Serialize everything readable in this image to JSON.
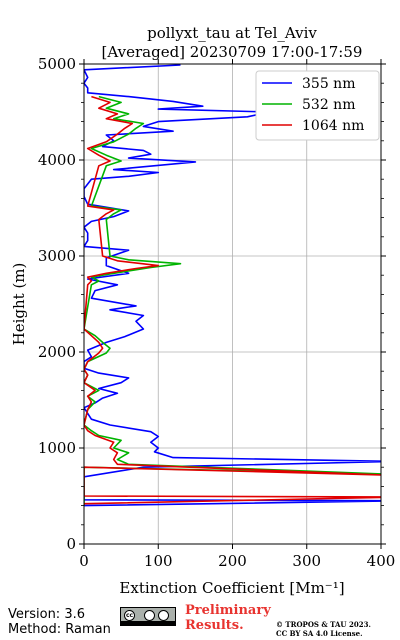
{
  "chart_data": {
    "type": "line",
    "title": "pollyxt_tau at Tel_Aviv",
    "subtitle": "[Averaged] 20230709 17:00-17:59",
    "xlabel": "Extinction Coefficient [Mm⁻¹]",
    "ylabel": "Height (m)",
    "xlim": [
      0,
      400
    ],
    "ylim": [
      0,
      5000
    ],
    "xticks": [
      "0",
      "100",
      "200",
      "300",
      "400"
    ],
    "yticks": [
      "0",
      "1000",
      "2000",
      "3000",
      "4000",
      "5000"
    ],
    "grid": true,
    "legend_position": "top-right",
    "series": [
      {
        "name": "355 nm",
        "color": "#0000ff",
        "points": [
          [
            0,
            400
          ],
          [
            430,
            450
          ],
          [
            0,
            460
          ],
          [
            0,
            700
          ],
          [
            80,
            800
          ],
          [
            420,
            860
          ],
          [
            120,
            900
          ],
          [
            95,
            960
          ],
          [
            100,
            1000
          ],
          [
            90,
            1060
          ],
          [
            100,
            1120
          ],
          [
            90,
            1170
          ],
          [
            35,
            1240
          ],
          [
            10,
            1300
          ],
          [
            5,
            1360
          ],
          [
            0,
            1420
          ],
          [
            15,
            1470
          ],
          [
            25,
            1520
          ],
          [
            45,
            1570
          ],
          [
            20,
            1620
          ],
          [
            50,
            1680
          ],
          [
            60,
            1730
          ],
          [
            20,
            1780
          ],
          [
            0,
            1830
          ],
          [
            0,
            1900
          ],
          [
            10,
            1950
          ],
          [
            5,
            2020
          ],
          [
            30,
            2100
          ],
          [
            55,
            2160
          ],
          [
            80,
            2240
          ],
          [
            70,
            2320
          ],
          [
            80,
            2380
          ],
          [
            35,
            2440
          ],
          [
            70,
            2480
          ],
          [
            10,
            2560
          ],
          [
            15,
            2640
          ],
          [
            45,
            2700
          ],
          [
            5,
            2760
          ],
          [
            60,
            2820
          ],
          [
            30,
            2900
          ],
          [
            30,
            2980
          ],
          [
            60,
            3060
          ],
          [
            0,
            3100
          ],
          [
            5,
            3160
          ],
          [
            5,
            3240
          ],
          [
            0,
            3300
          ],
          [
            10,
            3360
          ],
          [
            40,
            3410
          ],
          [
            60,
            3470
          ],
          [
            5,
            3540
          ],
          [
            0,
            3620
          ],
          [
            0,
            3700
          ],
          [
            5,
            3750
          ],
          [
            10,
            3800
          ],
          [
            60,
            3830
          ],
          [
            100,
            3870
          ],
          [
            40,
            3900
          ],
          [
            150,
            3980
          ],
          [
            60,
            4020
          ],
          [
            90,
            4060
          ],
          [
            80,
            4100
          ],
          [
            25,
            4140
          ],
          [
            40,
            4200
          ],
          [
            30,
            4260
          ],
          [
            120,
            4300
          ],
          [
            80,
            4350
          ],
          [
            100,
            4400
          ],
          [
            220,
            4450
          ],
          [
            250,
            4500
          ],
          [
            100,
            4530
          ],
          [
            160,
            4560
          ],
          [
            120,
            4610
          ],
          [
            60,
            4660
          ],
          [
            5,
            4700
          ],
          [
            5,
            4750
          ],
          [
            0,
            4800
          ],
          [
            5,
            4860
          ],
          [
            0,
            4940
          ],
          [
            130,
            4990
          ]
        ]
      },
      {
        "name": "532 nm",
        "color": "#00b400",
        "points": [
          [
            0,
            400
          ],
          [
            0,
            470
          ],
          [
            0,
            800
          ],
          [
            400,
            730
          ],
          [
            60,
            830
          ],
          [
            45,
            880
          ],
          [
            60,
            950
          ],
          [
            40,
            1000
          ],
          [
            50,
            1080
          ],
          [
            20,
            1130
          ],
          [
            10,
            1180
          ],
          [
            0,
            1240
          ],
          [
            5,
            1400
          ],
          [
            15,
            1480
          ],
          [
            5,
            1540
          ],
          [
            20,
            1600
          ],
          [
            0,
            1680
          ],
          [
            5,
            1760
          ],
          [
            0,
            1820
          ],
          [
            5,
            1900
          ],
          [
            30,
            1990
          ],
          [
            35,
            2040
          ],
          [
            25,
            2100
          ],
          [
            15,
            2170
          ],
          [
            0,
            2240
          ],
          [
            10,
            2700
          ],
          [
            20,
            2740
          ],
          [
            10,
            2780
          ],
          [
            40,
            2820
          ],
          [
            90,
            2880
          ],
          [
            130,
            2920
          ],
          [
            60,
            2960
          ],
          [
            35,
            3000
          ],
          [
            30,
            3380
          ],
          [
            40,
            3440
          ],
          [
            50,
            3480
          ],
          [
            10,
            3520
          ],
          [
            30,
            3940
          ],
          [
            50,
            3990
          ],
          [
            30,
            4050
          ],
          [
            10,
            4120
          ],
          [
            40,
            4190
          ],
          [
            60,
            4270
          ],
          [
            70,
            4330
          ],
          [
            80,
            4380
          ],
          [
            40,
            4430
          ],
          [
            60,
            4480
          ],
          [
            30,
            4540
          ],
          [
            50,
            4600
          ],
          [
            20,
            4660
          ]
        ]
      },
      {
        "name": "1064 nm",
        "color": "#e10000",
        "points": [
          [
            0,
            420
          ],
          [
            430,
            490
          ],
          [
            0,
            500
          ],
          [
            0,
            800
          ],
          [
            400,
            720
          ],
          [
            45,
            830
          ],
          [
            40,
            880
          ],
          [
            45,
            950
          ],
          [
            35,
            1000
          ],
          [
            40,
            1060
          ],
          [
            15,
            1130
          ],
          [
            5,
            1180
          ],
          [
            0,
            1240
          ],
          [
            5,
            1400
          ],
          [
            10,
            1480
          ],
          [
            5,
            1540
          ],
          [
            15,
            1600
          ],
          [
            0,
            1680
          ],
          [
            5,
            1760
          ],
          [
            0,
            1820
          ],
          [
            5,
            1900
          ],
          [
            20,
            1990
          ],
          [
            25,
            2040
          ],
          [
            20,
            2100
          ],
          [
            10,
            2170
          ],
          [
            0,
            2240
          ],
          [
            5,
            2700
          ],
          [
            10,
            2740
          ],
          [
            5,
            2780
          ],
          [
            30,
            2820
          ],
          [
            70,
            2870
          ],
          [
            100,
            2900
          ],
          [
            45,
            2950
          ],
          [
            25,
            3000
          ],
          [
            20,
            3380
          ],
          [
            30,
            3440
          ],
          [
            40,
            3480
          ],
          [
            5,
            3520
          ],
          [
            20,
            3940
          ],
          [
            35,
            3990
          ],
          [
            20,
            4050
          ],
          [
            5,
            4120
          ],
          [
            30,
            4190
          ],
          [
            45,
            4270
          ],
          [
            55,
            4330
          ],
          [
            65,
            4380
          ],
          [
            30,
            4430
          ],
          [
            45,
            4480
          ],
          [
            20,
            4540
          ],
          [
            35,
            4600
          ],
          [
            10,
            4660
          ]
        ]
      }
    ]
  },
  "footer": {
    "version": "Version: 3.6",
    "method": "Method: Raman",
    "license_badge": "BY SA",
    "prelim_line1": "Preliminary",
    "prelim_line2": "Results.",
    "copyright_line1": "© TROPOS & TAU 2023.",
    "copyright_line2": "CC BY SA 4.0 License."
  }
}
